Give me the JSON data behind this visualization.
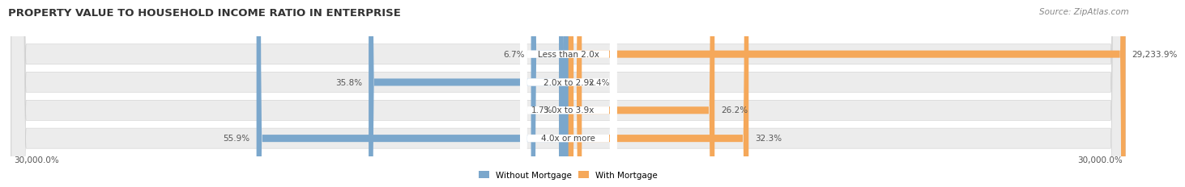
{
  "title": "PROPERTY VALUE TO HOUSEHOLD INCOME RATIO IN ENTERPRISE",
  "source": "Source: ZipAtlas.com",
  "categories": [
    "Less than 2.0x",
    "2.0x to 2.9x",
    "3.0x to 3.9x",
    "4.0x or more"
  ],
  "without_mortgage": [
    6.7,
    35.8,
    1.7,
    55.9
  ],
  "with_mortgage": [
    29233.9,
    2.4,
    26.2,
    32.3
  ],
  "without_mortgage_color": "#7ba7cc",
  "with_mortgage_color": "#f5a85a",
  "row_bg_color": "#ececec",
  "x_min": -30000.0,
  "x_max": 30000.0,
  "x_label_left": "30,000.0%",
  "x_label_right": "30,000.0%",
  "legend_label_blue": "Without Mortgage",
  "legend_label_orange": "With Mortgage",
  "title_fontsize": 9.5,
  "source_fontsize": 7.5,
  "bar_label_fontsize": 7.5,
  "category_fontsize": 7.5,
  "axis_fontsize": 7.5
}
